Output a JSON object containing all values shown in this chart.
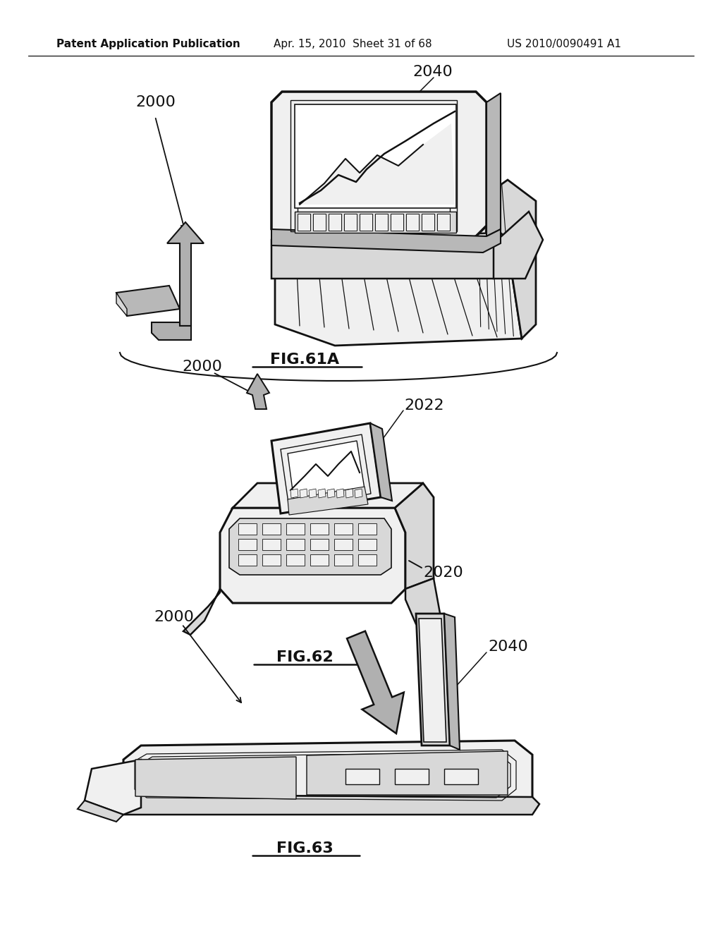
{
  "bg_color": "#ffffff",
  "header_left": "Patent Application Publication",
  "header_mid": "Apr. 15, 2010  Sheet 31 of 68",
  "header_right": "US 2010/0090491 A1",
  "fig61a_label": "FIG.61A",
  "fig62_label": "FIG.62",
  "fig63_label": "FIG.63",
  "label_2000_fig61": "2000",
  "label_2040_fig61": "2040",
  "label_2000_fig62": "2000",
  "label_2022_fig62": "2022",
  "label_2020_fig62": "2020",
  "label_2000_fig63": "2000",
  "label_2040_fig63": "2040",
  "lc": "#111111",
  "fill_white": "#ffffff",
  "fill_light": "#f0f0f0",
  "fill_mid": "#d8d8d8",
  "fill_dark": "#b8b8b8",
  "fill_arrow": "#b0b0b0"
}
